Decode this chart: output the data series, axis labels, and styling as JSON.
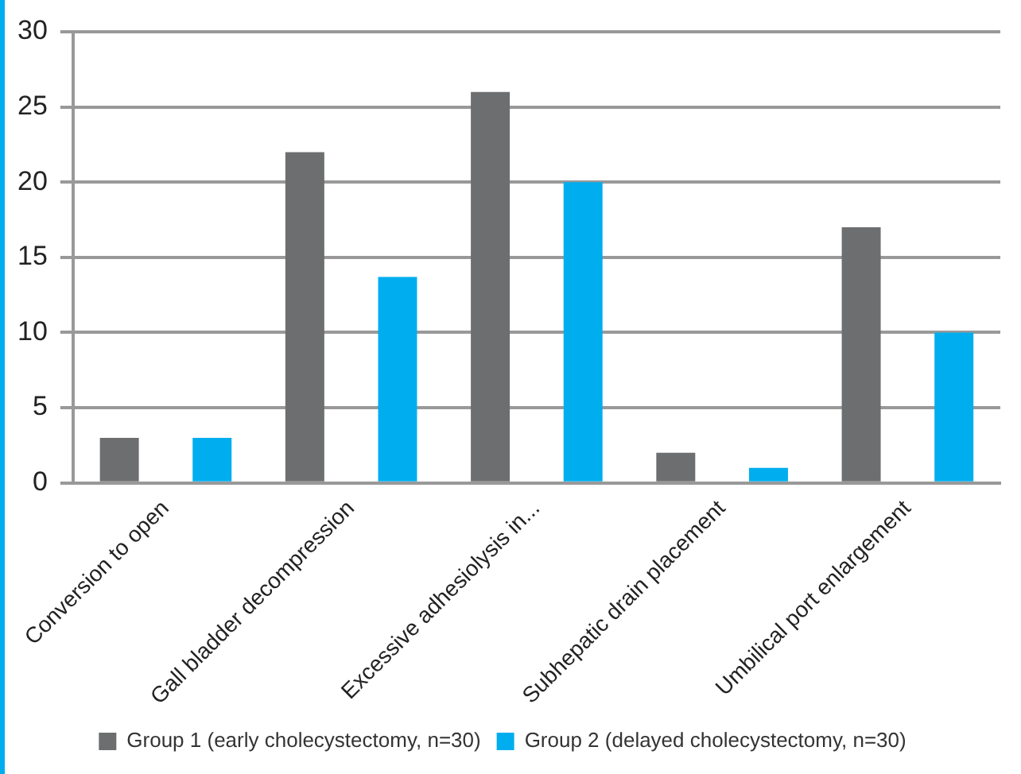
{
  "chart_data": {
    "type": "bar",
    "categories": [
      "Conversion to open",
      "Gall bladder decompression",
      "Excessive adhesiolysis in...",
      "Subhepatic drain placement",
      "Umbilical port enlargement"
    ],
    "series": [
      {
        "name": "Group 1 (early cholecystectomy, n=30)",
        "color": "#6d6e70",
        "values": [
          3,
          22,
          26,
          2,
          17
        ]
      },
      {
        "name": "Group 2 (delayed cholecystectomy, n=30)",
        "color": "#00aeef",
        "values": [
          3,
          13.7,
          20,
          1,
          10
        ]
      }
    ],
    "ylim": [
      0,
      30
    ],
    "yticks": [
      0,
      5,
      10,
      15,
      20,
      25,
      30
    ],
    "grid": "y",
    "legend": "bottom"
  }
}
